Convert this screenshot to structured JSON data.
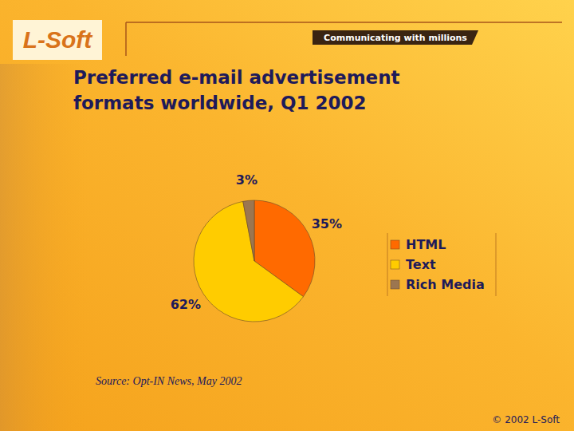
{
  "page": {
    "logo": "L-Soft",
    "tagline": "Communicating with millions",
    "copyright": "© 2002 L-Soft"
  },
  "chart_data": {
    "type": "pie",
    "title": "Preferred e-mail advertisement formats worldwide, Q1 2002",
    "categories": [
      "HTML",
      "Text",
      "Rich Media"
    ],
    "values": [
      35,
      62,
      3
    ],
    "value_labels": [
      "35%",
      "62%",
      "3%"
    ],
    "colors": [
      "#ff6a00",
      "#ffcc00",
      "#9c7650"
    ],
    "data_labels": true,
    "legend": "right",
    "annotations": [
      "Source: Opt-IN News, May 2002"
    ]
  }
}
